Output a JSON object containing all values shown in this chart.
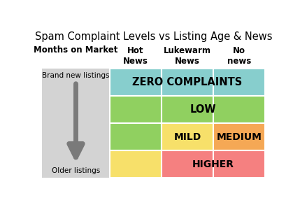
{
  "title": "Spam Complaint Levels vs Listing Age & News",
  "col_labels": [
    "Hot\nNews",
    "Lukewarm\nNews",
    "No\nnews"
  ],
  "row_label_top": "Brand new listings",
  "row_label_bottom": "Older listings",
  "months_label": "Months on Market",
  "grid_colors": [
    [
      "#87CECD",
      "#87CECD",
      "#87CECD"
    ],
    [
      "#90D060",
      "#90D060",
      "#90D060"
    ],
    [
      "#90D060",
      "#F7E06A",
      "#F5A855"
    ],
    [
      "#F7E06A",
      "#F5A855",
      "#F58080"
    ],
    [
      "#F5A855",
      "#F58080",
      "#F58080"
    ]
  ],
  "background_color": "#ffffff",
  "left_panel_color": "#D3D3D3",
  "figsize": [
    4.29,
    2.93
  ],
  "dpi": 100
}
